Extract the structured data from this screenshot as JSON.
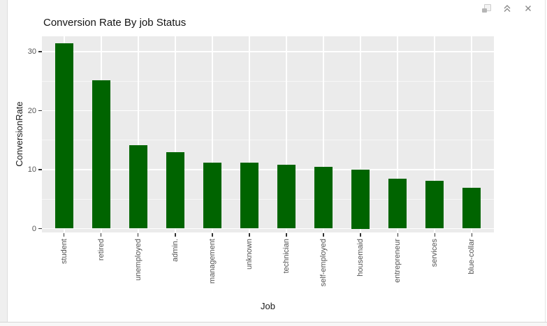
{
  "pane": {
    "toolbar": {
      "icons": [
        {
          "name": "open-in-new-window"
        },
        {
          "name": "collapse"
        },
        {
          "name": "close"
        }
      ]
    }
  },
  "chart_data": {
    "type": "bar",
    "title": "Conversion Rate By job Status",
    "xlabel": "Job",
    "ylabel": "ConversionRate",
    "categories": [
      "student",
      "retired",
      "unemployed",
      "admin.",
      "management",
      "unknown",
      "technician",
      "self-employed",
      "housemaid",
      "entrepreneur",
      "services",
      "blue-collar"
    ],
    "values": [
      31.4,
      25.2,
      14.2,
      13.0,
      11.2,
      11.2,
      10.8,
      10.5,
      10.0,
      8.5,
      8.1,
      6.9
    ],
    "yticks": [
      0,
      10,
      20,
      30
    ],
    "yticks_minor": [
      5,
      15,
      25
    ],
    "ylim": [
      0,
      32.5
    ],
    "grid": "horizontal major+minor, vertical major at category centers",
    "legend": "none",
    "colors": {
      "bar": "#006400",
      "panel_background": "#ebebeb",
      "grid_major": "#ffffff",
      "grid_minor": "#f5f5f5",
      "axis_text": "#555555",
      "title_text": "#141414"
    }
  }
}
